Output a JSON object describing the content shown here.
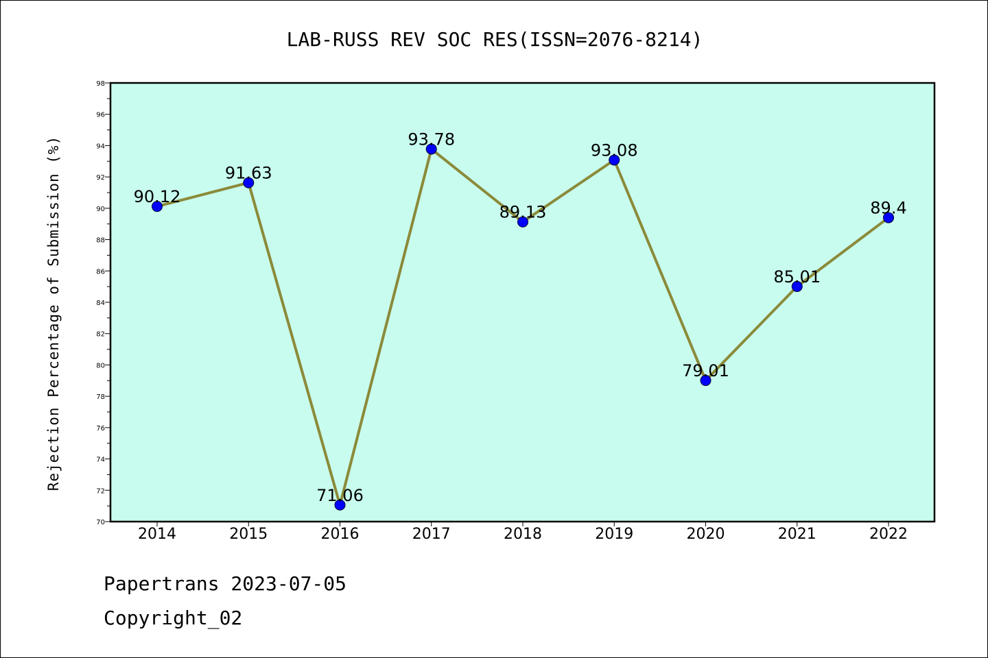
{
  "chart_data": {
    "type": "line",
    "title": "LAB-RUSS REV SOC RES(ISSN=2076-8214)",
    "xlabel": "",
    "ylabel": "Rejection Percentage of Submission (%)",
    "categories": [
      "2014",
      "2015",
      "2016",
      "2017",
      "2018",
      "2019",
      "2020",
      "2021",
      "2022"
    ],
    "series": [
      {
        "values": [
          90.12,
          91.63,
          71.06,
          93.78,
          89.13,
          93.08,
          79.01,
          85.01,
          89.4
        ],
        "labels": [
          "90.12",
          "91.63",
          "71.06",
          "93.78",
          "89.13",
          "93.08",
          "79.01",
          "85.01",
          "89.4"
        ],
        "line_color": "#8b8a3a",
        "marker_color": "#0000ff"
      }
    ],
    "ylim": [
      70,
      98
    ],
    "yticks": [
      70,
      72,
      74,
      76,
      78,
      80,
      82,
      84,
      86,
      88,
      90,
      92,
      94,
      96,
      98
    ],
    "plot_background": "#c8fcee",
    "grid": false,
    "legend": "none"
  },
  "footer": {
    "line1": "Papertrans 2023-07-05",
    "line2": "Copyright_02"
  }
}
